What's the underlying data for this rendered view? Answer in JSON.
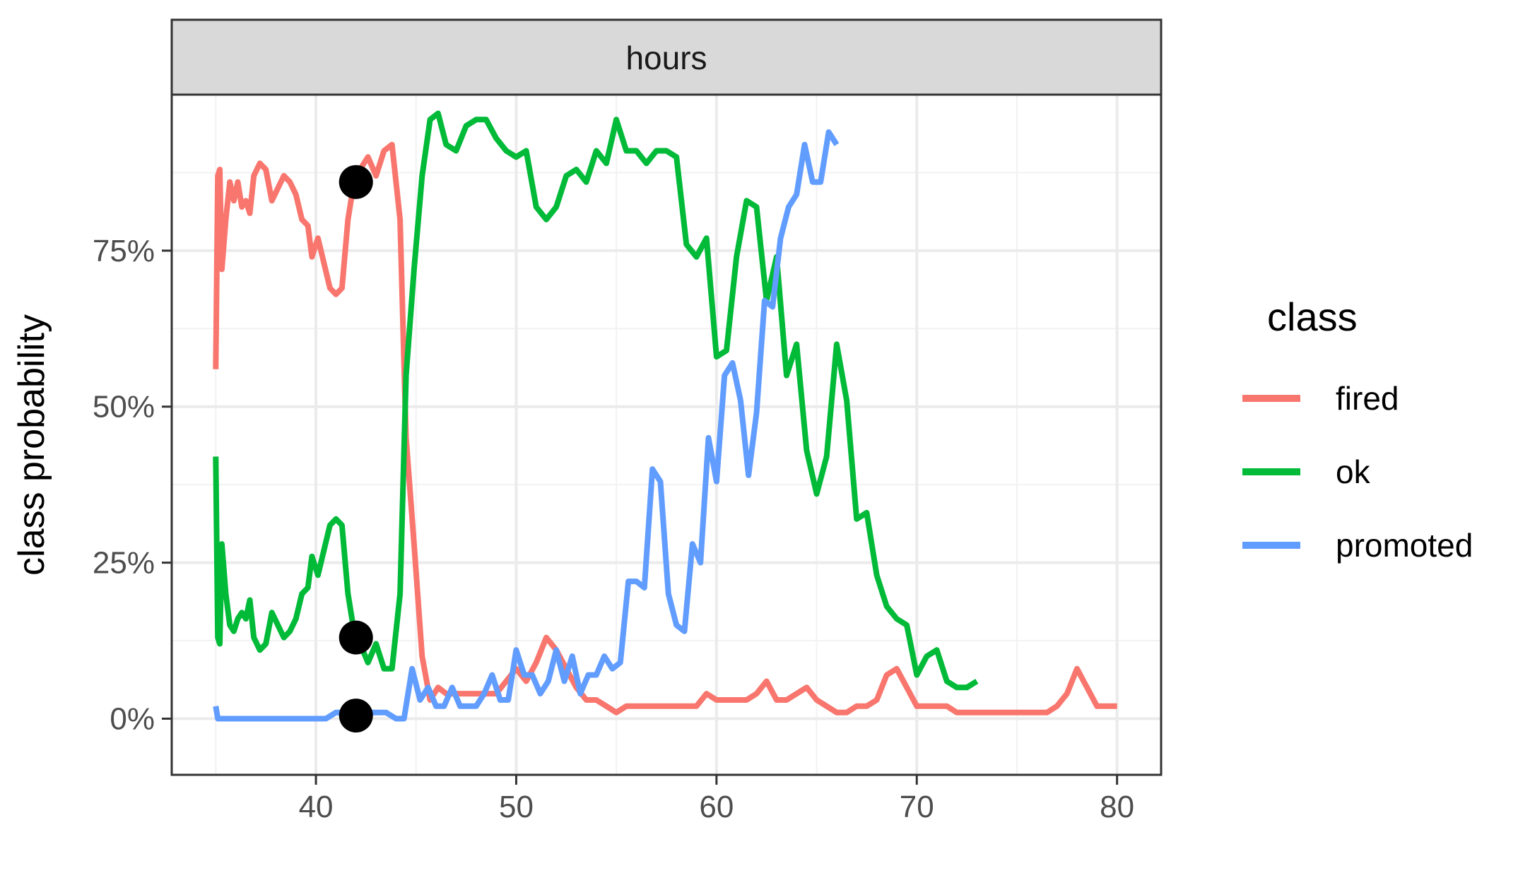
{
  "chart_data": {
    "type": "line",
    "facet_label": "hours",
    "xlabel": "",
    "ylabel": "class probability",
    "xlim": [
      32.8,
      82.2
    ],
    "ylim": [
      -0.09,
      1.0
    ],
    "x_ticks": [
      40,
      50,
      60,
      70,
      80
    ],
    "x_tick_labels": [
      "40",
      "50",
      "60",
      "70",
      "80"
    ],
    "y_ticks": [
      0,
      0.25,
      0.5,
      0.75
    ],
    "y_tick_labels": [
      "0%",
      "25%",
      "50%",
      "75%"
    ],
    "grid": true,
    "legend": {
      "title": "class",
      "position": "right"
    },
    "series": [
      {
        "name": "fired",
        "color": "#F8766D",
        "points": [
          [
            35.0,
            0.56
          ],
          [
            35.1,
            0.87
          ],
          [
            35.2,
            0.88
          ],
          [
            35.3,
            0.72
          ],
          [
            35.5,
            0.8
          ],
          [
            35.7,
            0.86
          ],
          [
            35.9,
            0.83
          ],
          [
            36.1,
            0.86
          ],
          [
            36.3,
            0.82
          ],
          [
            36.5,
            0.83
          ],
          [
            36.7,
            0.81
          ],
          [
            36.9,
            0.87
          ],
          [
            37.2,
            0.89
          ],
          [
            37.5,
            0.88
          ],
          [
            37.8,
            0.83
          ],
          [
            38.1,
            0.85
          ],
          [
            38.4,
            0.87
          ],
          [
            38.7,
            0.86
          ],
          [
            39.0,
            0.84
          ],
          [
            39.3,
            0.8
          ],
          [
            39.6,
            0.79
          ],
          [
            39.8,
            0.74
          ],
          [
            40.1,
            0.77
          ],
          [
            40.4,
            0.73
          ],
          [
            40.7,
            0.69
          ],
          [
            41.0,
            0.68
          ],
          [
            41.3,
            0.69
          ],
          [
            41.6,
            0.8
          ],
          [
            41.9,
            0.86
          ],
          [
            42.2,
            0.88
          ],
          [
            42.6,
            0.9
          ],
          [
            43.0,
            0.87
          ],
          [
            43.4,
            0.91
          ],
          [
            43.8,
            0.92
          ],
          [
            44.2,
            0.8
          ],
          [
            44.5,
            0.45
          ],
          [
            44.9,
            0.28
          ],
          [
            45.3,
            0.1
          ],
          [
            45.7,
            0.03
          ],
          [
            46.1,
            0.05
          ],
          [
            46.5,
            0.04
          ],
          [
            47.0,
            0.04
          ],
          [
            47.5,
            0.04
          ],
          [
            48.0,
            0.04
          ],
          [
            48.5,
            0.04
          ],
          [
            49.0,
            0.04
          ],
          [
            49.5,
            0.06
          ],
          [
            50.0,
            0.08
          ],
          [
            50.5,
            0.06
          ],
          [
            51.0,
            0.09
          ],
          [
            51.5,
            0.13
          ],
          [
            52.0,
            0.11
          ],
          [
            52.5,
            0.08
          ],
          [
            53.0,
            0.05
          ],
          [
            53.5,
            0.03
          ],
          [
            54.0,
            0.03
          ],
          [
            54.5,
            0.02
          ],
          [
            55.0,
            0.01
          ],
          [
            55.5,
            0.02
          ],
          [
            56.0,
            0.02
          ],
          [
            56.5,
            0.02
          ],
          [
            57.0,
            0.02
          ],
          [
            57.5,
            0.02
          ],
          [
            58.0,
            0.02
          ],
          [
            58.5,
            0.02
          ],
          [
            59.0,
            0.02
          ],
          [
            59.5,
            0.04
          ],
          [
            60.0,
            0.03
          ],
          [
            60.5,
            0.03
          ],
          [
            61.0,
            0.03
          ],
          [
            61.5,
            0.03
          ],
          [
            62.0,
            0.04
          ],
          [
            62.5,
            0.06
          ],
          [
            63.0,
            0.03
          ],
          [
            63.5,
            0.03
          ],
          [
            64.0,
            0.04
          ],
          [
            64.5,
            0.05
          ],
          [
            65.0,
            0.03
          ],
          [
            65.5,
            0.02
          ],
          [
            66.0,
            0.01
          ],
          [
            66.5,
            0.01
          ],
          [
            67.0,
            0.02
          ],
          [
            67.5,
            0.02
          ],
          [
            68.0,
            0.03
          ],
          [
            68.5,
            0.07
          ],
          [
            69.0,
            0.08
          ],
          [
            69.5,
            0.05
          ],
          [
            70.0,
            0.02
          ],
          [
            70.5,
            0.02
          ],
          [
            71.0,
            0.02
          ],
          [
            71.5,
            0.02
          ],
          [
            72.0,
            0.01
          ],
          [
            72.5,
            0.01
          ],
          [
            73.0,
            0.01
          ],
          [
            73.5,
            0.01
          ],
          [
            74.0,
            0.01
          ],
          [
            74.5,
            0.01
          ],
          [
            75.0,
            0.01
          ],
          [
            75.5,
            0.01
          ],
          [
            76.0,
            0.01
          ],
          [
            76.5,
            0.01
          ],
          [
            77.0,
            0.02
          ],
          [
            77.5,
            0.04
          ],
          [
            78.0,
            0.08
          ],
          [
            78.5,
            0.05
          ],
          [
            79.0,
            0.02
          ],
          [
            79.5,
            0.02
          ],
          [
            80.0,
            0.02
          ]
        ]
      },
      {
        "name": "ok",
        "color": "#00BA38",
        "points": [
          [
            35.0,
            0.42
          ],
          [
            35.1,
            0.13
          ],
          [
            35.2,
            0.12
          ],
          [
            35.3,
            0.28
          ],
          [
            35.5,
            0.2
          ],
          [
            35.7,
            0.15
          ],
          [
            35.9,
            0.14
          ],
          [
            36.1,
            0.16
          ],
          [
            36.3,
            0.17
          ],
          [
            36.5,
            0.16
          ],
          [
            36.7,
            0.19
          ],
          [
            36.9,
            0.13
          ],
          [
            37.2,
            0.11
          ],
          [
            37.5,
            0.12
          ],
          [
            37.8,
            0.17
          ],
          [
            38.1,
            0.15
          ],
          [
            38.4,
            0.13
          ],
          [
            38.7,
            0.14
          ],
          [
            39.0,
            0.16
          ],
          [
            39.3,
            0.2
          ],
          [
            39.6,
            0.21
          ],
          [
            39.8,
            0.26
          ],
          [
            40.1,
            0.23
          ],
          [
            40.4,
            0.27
          ],
          [
            40.7,
            0.31
          ],
          [
            41.0,
            0.32
          ],
          [
            41.3,
            0.31
          ],
          [
            41.6,
            0.2
          ],
          [
            41.9,
            0.14
          ],
          [
            42.2,
            0.12
          ],
          [
            42.6,
            0.09
          ],
          [
            43.0,
            0.12
          ],
          [
            43.4,
            0.08
          ],
          [
            43.8,
            0.08
          ],
          [
            44.2,
            0.2
          ],
          [
            44.5,
            0.55
          ],
          [
            44.9,
            0.72
          ],
          [
            45.3,
            0.87
          ],
          [
            45.7,
            0.96
          ],
          [
            46.1,
            0.97
          ],
          [
            46.5,
            0.92
          ],
          [
            47.0,
            0.91
          ],
          [
            47.5,
            0.95
          ],
          [
            48.0,
            0.96
          ],
          [
            48.5,
            0.96
          ],
          [
            49.0,
            0.93
          ],
          [
            49.5,
            0.91
          ],
          [
            50.0,
            0.9
          ],
          [
            50.5,
            0.91
          ],
          [
            51.0,
            0.82
          ],
          [
            51.5,
            0.8
          ],
          [
            52.0,
            0.82
          ],
          [
            52.5,
            0.87
          ],
          [
            53.0,
            0.88
          ],
          [
            53.5,
            0.86
          ],
          [
            54.0,
            0.91
          ],
          [
            54.5,
            0.89
          ],
          [
            55.0,
            0.96
          ],
          [
            55.5,
            0.91
          ],
          [
            56.0,
            0.91
          ],
          [
            56.5,
            0.89
          ],
          [
            57.0,
            0.91
          ],
          [
            57.5,
            0.91
          ],
          [
            58.0,
            0.9
          ],
          [
            58.5,
            0.76
          ],
          [
            59.0,
            0.74
          ],
          [
            59.5,
            0.77
          ],
          [
            60.0,
            0.58
          ],
          [
            60.5,
            0.59
          ],
          [
            61.0,
            0.74
          ],
          [
            61.5,
            0.83
          ],
          [
            62.0,
            0.82
          ],
          [
            62.5,
            0.67
          ],
          [
            63.0,
            0.74
          ],
          [
            63.5,
            0.55
          ],
          [
            64.0,
            0.6
          ],
          [
            64.5,
            0.43
          ],
          [
            65.0,
            0.36
          ],
          [
            65.5,
            0.42
          ],
          [
            66.0,
            0.6
          ],
          [
            66.5,
            0.51
          ],
          [
            67.0,
            0.32
          ],
          [
            67.5,
            0.33
          ],
          [
            68.0,
            0.23
          ],
          [
            68.5,
            0.18
          ],
          [
            69.0,
            0.16
          ],
          [
            69.5,
            0.15
          ],
          [
            70.0,
            0.07
          ],
          [
            70.5,
            0.1
          ],
          [
            71.0,
            0.11
          ],
          [
            71.5,
            0.06
          ],
          [
            72.0,
            0.05
          ],
          [
            72.5,
            0.05
          ],
          [
            73.0,
            0.06
          ]
        ]
      },
      {
        "name": "promoted",
        "color": "#619CFF",
        "points": [
          [
            35.0,
            0.02
          ],
          [
            35.1,
            0.0
          ],
          [
            35.3,
            0.0
          ],
          [
            35.6,
            0.0
          ],
          [
            36.0,
            0.0
          ],
          [
            36.5,
            0.0
          ],
          [
            37.0,
            0.0
          ],
          [
            37.5,
            0.0
          ],
          [
            38.0,
            0.0
          ],
          [
            38.5,
            0.0
          ],
          [
            39.0,
            0.0
          ],
          [
            39.5,
            0.0
          ],
          [
            40.0,
            0.0
          ],
          [
            40.5,
            0.0
          ],
          [
            41.0,
            0.01
          ],
          [
            41.5,
            0.01
          ],
          [
            42.0,
            0.01
          ],
          [
            42.5,
            0.01
          ],
          [
            43.0,
            0.01
          ],
          [
            43.5,
            0.01
          ],
          [
            44.0,
            0.0
          ],
          [
            44.4,
            0.0
          ],
          [
            44.8,
            0.08
          ],
          [
            45.2,
            0.03
          ],
          [
            45.6,
            0.05
          ],
          [
            46.0,
            0.02
          ],
          [
            46.4,
            0.02
          ],
          [
            46.8,
            0.05
          ],
          [
            47.2,
            0.02
          ],
          [
            47.6,
            0.02
          ],
          [
            48.0,
            0.02
          ],
          [
            48.4,
            0.04
          ],
          [
            48.8,
            0.07
          ],
          [
            49.2,
            0.03
          ],
          [
            49.6,
            0.03
          ],
          [
            50.0,
            0.11
          ],
          [
            50.4,
            0.07
          ],
          [
            50.8,
            0.07
          ],
          [
            51.2,
            0.04
          ],
          [
            51.6,
            0.06
          ],
          [
            52.0,
            0.11
          ],
          [
            52.4,
            0.06
          ],
          [
            52.8,
            0.1
          ],
          [
            53.2,
            0.04
          ],
          [
            53.6,
            0.07
          ],
          [
            54.0,
            0.07
          ],
          [
            54.4,
            0.1
          ],
          [
            54.8,
            0.08
          ],
          [
            55.2,
            0.09
          ],
          [
            55.6,
            0.22
          ],
          [
            56.0,
            0.22
          ],
          [
            56.4,
            0.21
          ],
          [
            56.8,
            0.4
          ],
          [
            57.2,
            0.38
          ],
          [
            57.6,
            0.2
          ],
          [
            58.0,
            0.15
          ],
          [
            58.4,
            0.14
          ],
          [
            58.8,
            0.28
          ],
          [
            59.2,
            0.25
          ],
          [
            59.6,
            0.45
          ],
          [
            60.0,
            0.38
          ],
          [
            60.4,
            0.55
          ],
          [
            60.8,
            0.57
          ],
          [
            61.2,
            0.51
          ],
          [
            61.6,
            0.39
          ],
          [
            62.0,
            0.49
          ],
          [
            62.4,
            0.67
          ],
          [
            62.8,
            0.66
          ],
          [
            63.2,
            0.77
          ],
          [
            63.6,
            0.82
          ],
          [
            64.0,
            0.84
          ],
          [
            64.4,
            0.92
          ],
          [
            64.8,
            0.86
          ],
          [
            65.2,
            0.86
          ],
          [
            65.6,
            0.94
          ],
          [
            66.0,
            0.92
          ]
        ]
      }
    ]
  }
}
